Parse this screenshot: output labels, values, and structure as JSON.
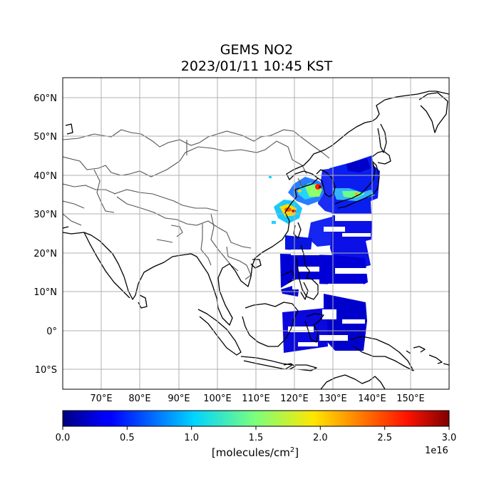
{
  "title": {
    "line1": "GEMS NO2",
    "line2": "2023/01/11 10:45 KST"
  },
  "map": {
    "extent": {
      "lon": [
        60,
        160
      ],
      "lat": [
        -15,
        65
      ]
    },
    "lat_ticks": [
      {
        "value": 60,
        "label": "60°N"
      },
      {
        "value": 50,
        "label": "50°N"
      },
      {
        "value": 40,
        "label": "40°N"
      },
      {
        "value": 30,
        "label": "30°N"
      },
      {
        "value": 20,
        "label": "20°N"
      },
      {
        "value": 10,
        "label": "10°N"
      },
      {
        "value": 0,
        "label": "0°"
      },
      {
        "value": -10,
        "label": "10°S"
      }
    ],
    "lon_ticks": [
      {
        "value": 70,
        "label": "70°E"
      },
      {
        "value": 80,
        "label": "80°E"
      },
      {
        "value": 90,
        "label": "90°E"
      },
      {
        "value": 100,
        "label": "100°E"
      },
      {
        "value": 110,
        "label": "110°E"
      },
      {
        "value": 120,
        "label": "120°E"
      },
      {
        "value": 130,
        "label": "130°E"
      },
      {
        "value": 140,
        "label": "140°E"
      },
      {
        "value": 150,
        "label": "150°E"
      }
    ],
    "grid": true,
    "colors": {
      "coastline": "#000000",
      "borders": "#555555",
      "grid": "#b0b0b0"
    }
  },
  "colorbar": {
    "colormap": "jet",
    "range": [
      0.0,
      3.0
    ],
    "ticks": [
      "0.0",
      "0.5",
      "1.0",
      "1.5",
      "2.0",
      "2.5",
      "3.0"
    ],
    "exponent": "1e16",
    "unit_base": "[molecules/cm",
    "unit_sup": "2",
    "unit_end": "]"
  }
}
